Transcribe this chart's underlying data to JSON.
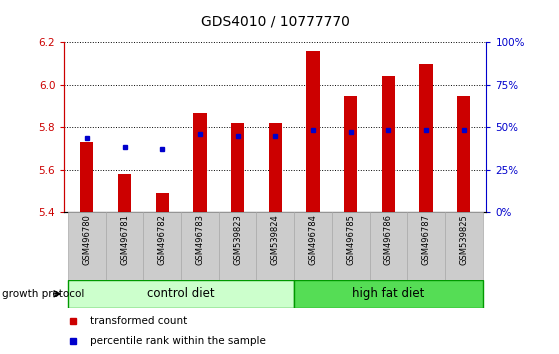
{
  "title": "GDS4010 / 10777770",
  "samples": [
    "GSM496780",
    "GSM496781",
    "GSM496782",
    "GSM496783",
    "GSM539823",
    "GSM539824",
    "GSM496784",
    "GSM496785",
    "GSM496786",
    "GSM496787",
    "GSM539825"
  ],
  "transformed_count": [
    5.73,
    5.58,
    5.49,
    5.87,
    5.82,
    5.82,
    6.16,
    5.95,
    6.04,
    6.1,
    5.95
  ],
  "percentile_rank": [
    5.75,
    5.71,
    5.7,
    5.77,
    5.76,
    5.76,
    5.79,
    5.78,
    5.79,
    5.79,
    5.79
  ],
  "ylim_left": [
    5.4,
    6.2
  ],
  "ylim_right": [
    0,
    100
  ],
  "yticks_left": [
    5.4,
    5.6,
    5.8,
    6.0,
    6.2
  ],
  "yticks_right": [
    0,
    25,
    50,
    75,
    100
  ],
  "ytick_labels_right": [
    "0%",
    "25%",
    "50%",
    "75%",
    "100%"
  ],
  "bar_color": "#cc0000",
  "dot_color": "#0000cc",
  "bar_width": 0.35,
  "n_control": 6,
  "n_high_fat": 5,
  "control_color_light": "#ccffcc",
  "high_fat_color_light": "#55dd55",
  "group_border_color": "#009900",
  "label_control": "control diet",
  "label_high_fat": "high fat diet",
  "label_growth": "growth protocol",
  "legend_tc": "transformed count",
  "legend_pr": "percentile rank within the sample",
  "left_axis_color": "#cc0000",
  "right_axis_color": "#0000cc",
  "sample_box_color": "#cccccc",
  "sample_box_edge": "#aaaaaa"
}
